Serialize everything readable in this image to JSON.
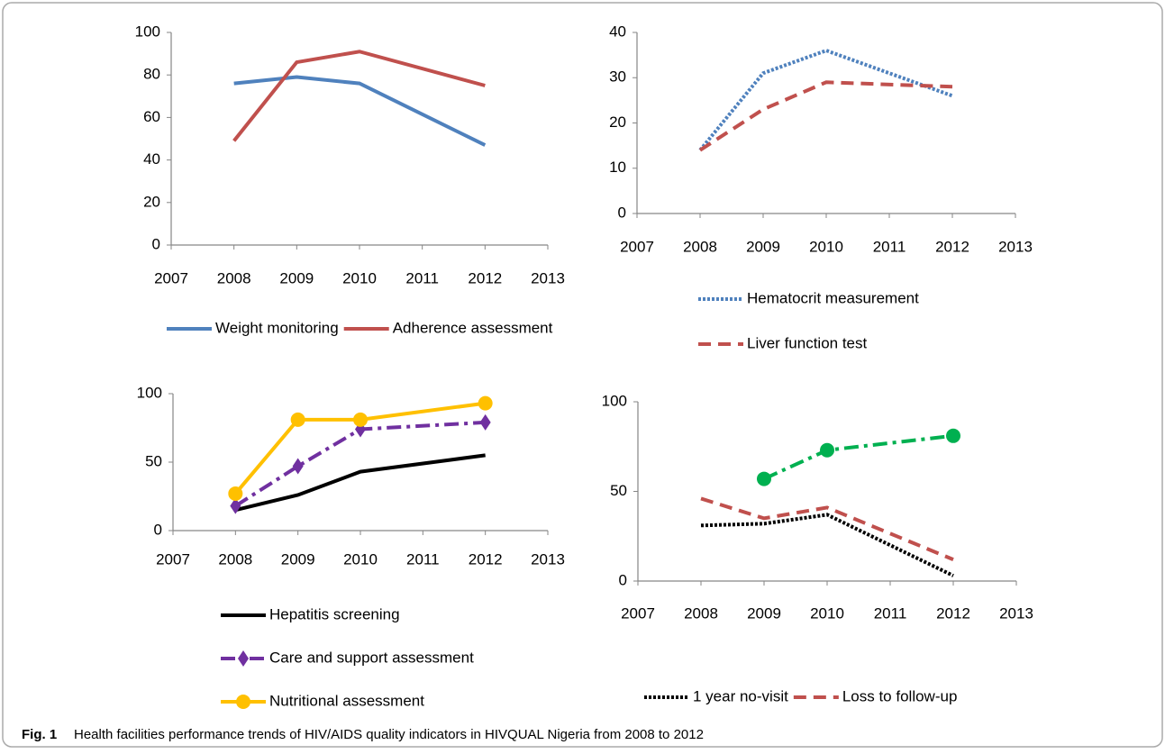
{
  "chart_data": [
    {
      "type": "line",
      "xlim": [
        2007,
        2013
      ],
      "xticks": [
        2007,
        2008,
        2009,
        2010,
        2011,
        2012,
        2013
      ],
      "ylim": [
        0,
        100
      ],
      "yticks": [
        0,
        20,
        40,
        60,
        80,
        100
      ],
      "legend": "bottom",
      "series": [
        {
          "name": "Weight monitoring",
          "color": "#4f81bd",
          "dash": "solid",
          "x": [
            2008,
            2009,
            2010,
            2012
          ],
          "values": [
            76,
            79,
            76,
            47
          ]
        },
        {
          "name": "Adherence assessment",
          "color": "#c0504d",
          "dash": "solid",
          "x": [
            2008,
            2009,
            2010,
            2012
          ],
          "values": [
            49,
            86,
            91,
            75
          ]
        }
      ]
    },
    {
      "type": "line",
      "xlim": [
        2007,
        2013
      ],
      "xticks": [
        2007,
        2008,
        2009,
        2010,
        2011,
        2012,
        2013
      ],
      "ylim": [
        0,
        40
      ],
      "yticks": [
        0,
        10,
        20,
        30,
        40
      ],
      "legend": "bottom",
      "series": [
        {
          "name": "Hematocrit measurement",
          "color": "#4f81bd",
          "dash": "dot",
          "x": [
            2008,
            2009,
            2010,
            2012
          ],
          "values": [
            14,
            31,
            36,
            26
          ]
        },
        {
          "name": "Liver function test",
          "color": "#c0504d",
          "dash": "dash",
          "x": [
            2008,
            2009,
            2010,
            2012
          ],
          "values": [
            14,
            23,
            29,
            28
          ]
        }
      ]
    },
    {
      "type": "line",
      "xlim": [
        2007,
        2013
      ],
      "xticks": [
        2007,
        2008,
        2009,
        2010,
        2011,
        2012,
        2013
      ],
      "ylim": [
        0,
        100
      ],
      "yticks": [
        0,
        50,
        100
      ],
      "legend": "bottom",
      "series": [
        {
          "name": "Hepatitis screening",
          "color": "#000000",
          "dash": "solid",
          "x": [
            2008,
            2009,
            2010,
            2012
          ],
          "values": [
            15,
            26,
            43,
            55
          ]
        },
        {
          "name": "Care and support assessment",
          "color": "#7030a0",
          "dash": "dashdot",
          "marker": "diamond",
          "x": [
            2008,
            2009,
            2010,
            2012
          ],
          "values": [
            18,
            47,
            74,
            79
          ]
        },
        {
          "name": "Nutritional assessment",
          "color": "#ffc000",
          "dash": "solid",
          "marker": "circle",
          "x": [
            2008,
            2009,
            2010,
            2012
          ],
          "values": [
            27,
            81,
            81,
            93
          ]
        }
      ]
    },
    {
      "type": "line",
      "xlim": [
        2007,
        2013
      ],
      "xticks": [
        2007,
        2008,
        2009,
        2010,
        2011,
        2012,
        2013
      ],
      "ylim": [
        0,
        100
      ],
      "yticks": [
        0,
        50,
        100
      ],
      "legend": "bottom",
      "series": [
        {
          "color": "#00b050",
          "dash": "dashdot",
          "marker": "circle",
          "x": [
            2009,
            2010,
            2012
          ],
          "values": [
            57,
            73,
            81
          ]
        },
        {
          "name": "1 year no-visit",
          "color": "#000000",
          "dash": "dot",
          "x": [
            2008,
            2009,
            2010,
            2012
          ],
          "values": [
            31,
            32,
            37,
            3
          ]
        },
        {
          "name": "Loss to follow-up",
          "color": "#c0504d",
          "dash": "dash",
          "x": [
            2008,
            2009,
            2010,
            2012
          ],
          "values": [
            46,
            35,
            41,
            12
          ]
        }
      ]
    }
  ],
  "caption": {
    "label": "Fig. 1",
    "text": "Health facilities performance trends of HIV/AIDS quality indicators in HIVQUAL Nigeria from 2008 to 2012"
  }
}
